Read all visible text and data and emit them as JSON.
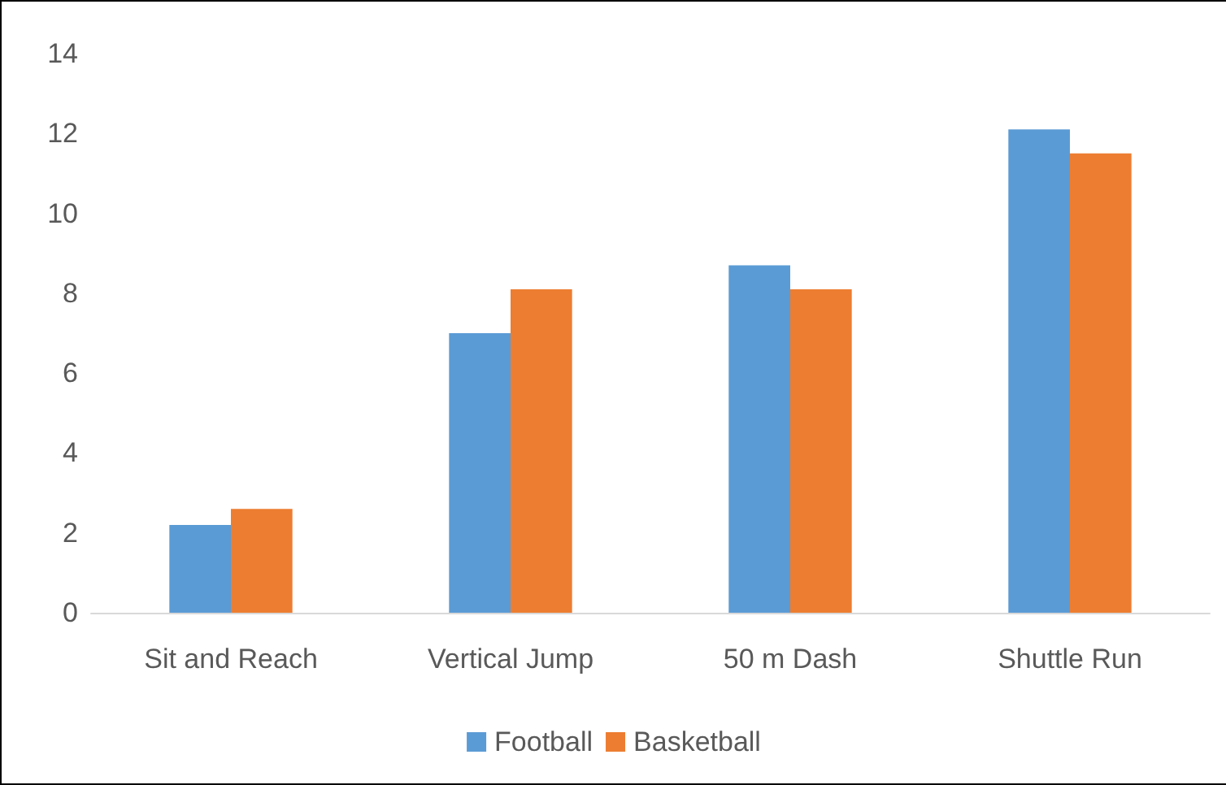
{
  "chart_data": {
    "type": "bar",
    "categories": [
      "Sit and Reach",
      "Vertical Jump",
      "50 m Dash",
      "Shuttle Run"
    ],
    "series": [
      {
        "name": "Football",
        "color": "#5b9bd5",
        "values": [
          2.2,
          7.0,
          8.7,
          12.1
        ]
      },
      {
        "name": "Basketball",
        "color": "#ed7d31",
        "values": [
          2.6,
          8.1,
          8.1,
          11.5
        ]
      }
    ],
    "ylim": [
      0,
      14
    ],
    "yticks": [
      0,
      2,
      4,
      6,
      8,
      10,
      12,
      14
    ],
    "grid": false,
    "legend": "bottom"
  }
}
